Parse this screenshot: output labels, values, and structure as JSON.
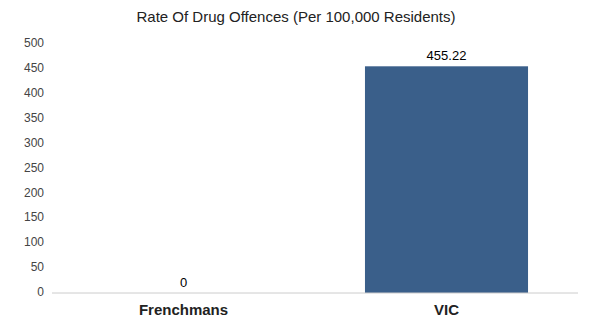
{
  "chart_data": {
    "type": "bar",
    "title": "Rate Of Drug Offences (Per 100,000 Residents)",
    "categories": [
      "Frenchmans",
      "VIC"
    ],
    "values": [
      0,
      455.22
    ],
    "color": "#3a5f8a",
    "ylim": [
      0,
      500
    ],
    "yticks": [
      0,
      50,
      100,
      150,
      200,
      250,
      300,
      350,
      400,
      450,
      500
    ],
    "grid": false,
    "data_labels": true
  }
}
